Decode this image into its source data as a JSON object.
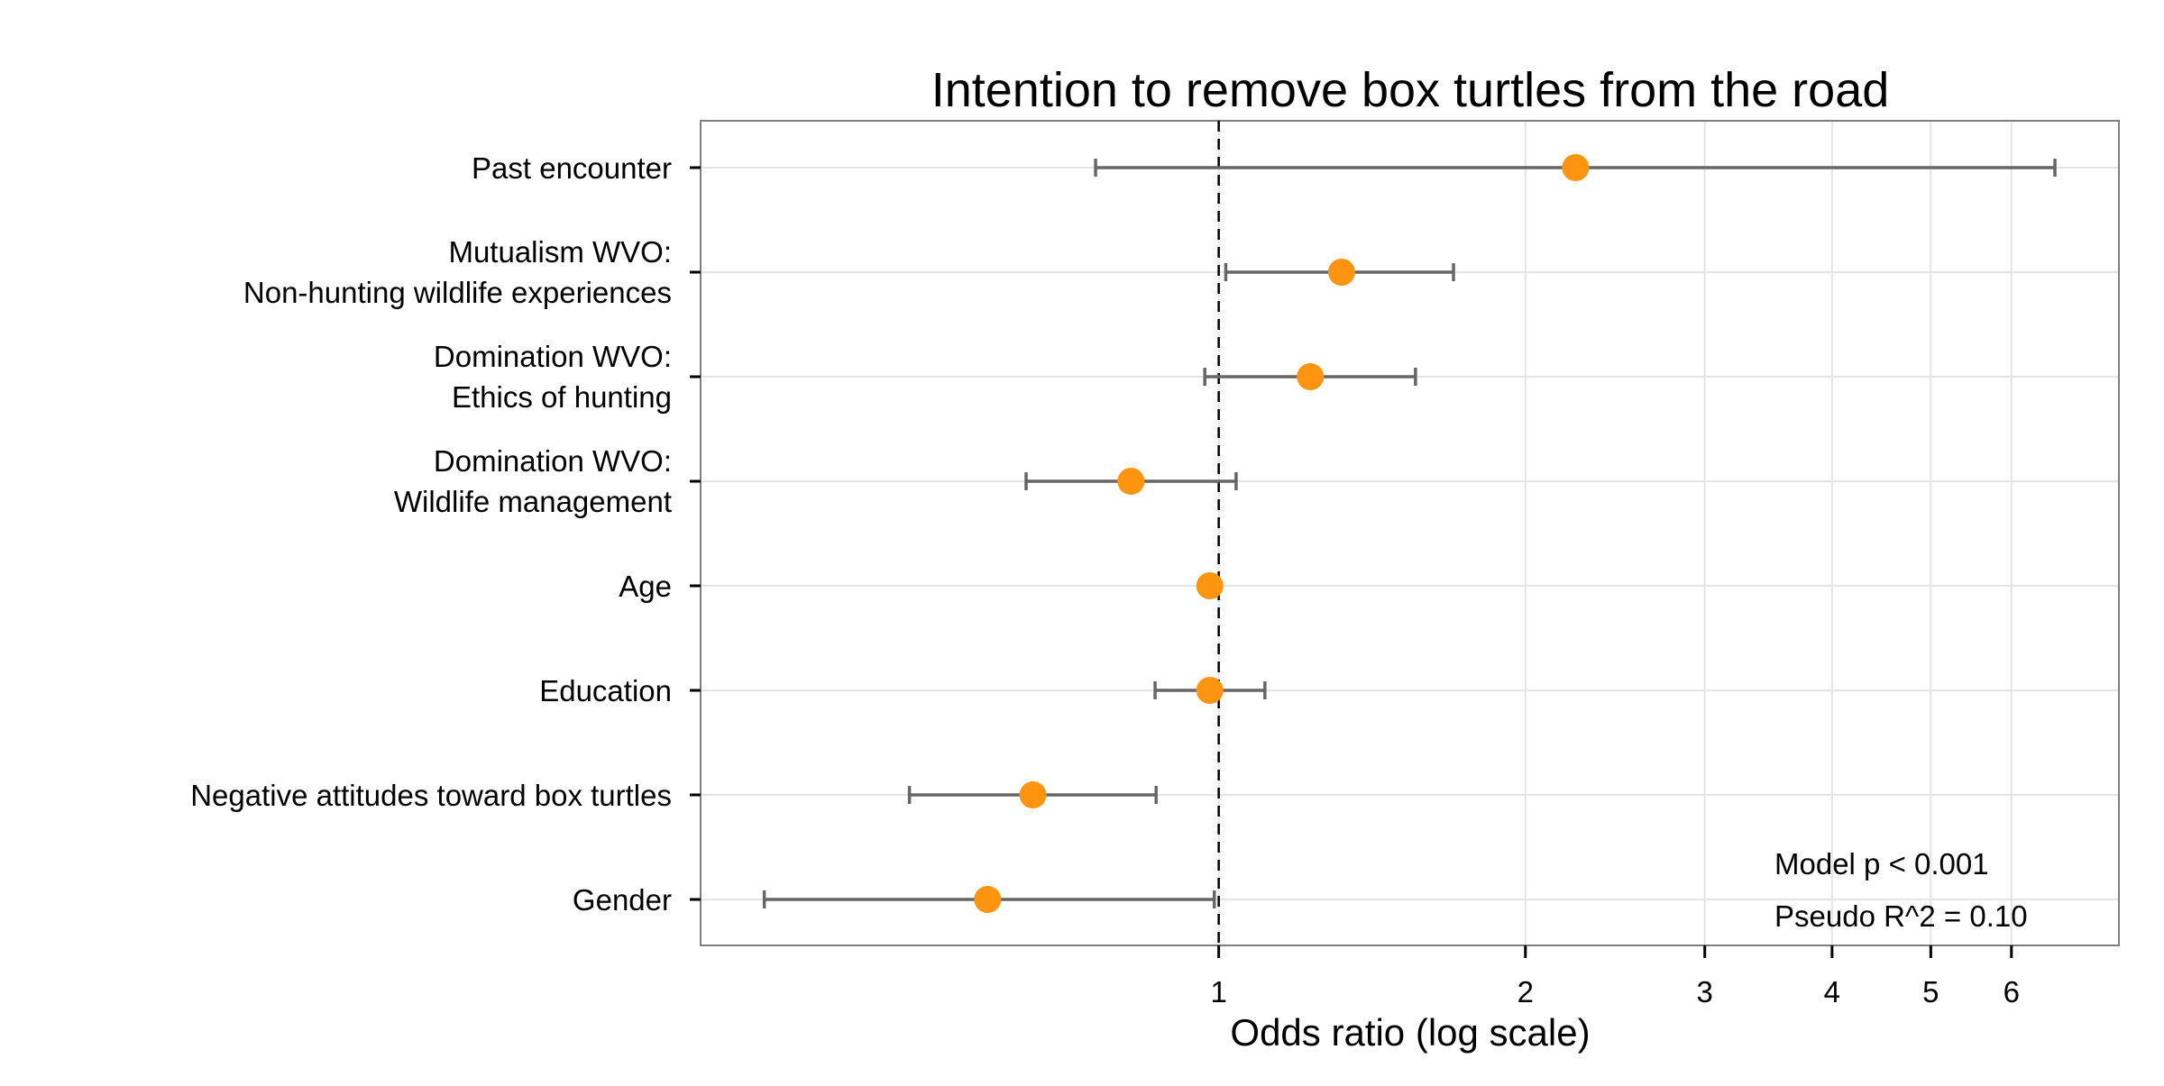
{
  "chart_data": {
    "type": "forest",
    "title": "Intention to remove box turtles from the road",
    "xlabel": "Odds ratio (log scale)",
    "ylabel": "",
    "x_scale": "log",
    "xlim": [
      0.31,
      7.65
    ],
    "x_ticks": [
      1,
      2,
      3,
      4,
      5,
      6
    ],
    "x_tick_labels": [
      "1",
      "2",
      "3",
      "4",
      "5",
      "6"
    ],
    "reference_line": 1,
    "grid": true,
    "colors": {
      "point": "#FF9410",
      "errorbar": "#666666",
      "reference": "#000000",
      "grid": "#E5E5E5"
    },
    "rows": [
      {
        "label": [
          "Past encounter"
        ],
        "or": 2.24,
        "lower": 0.757,
        "upper": 6.62
      },
      {
        "label": [
          "Mutualism WVO:",
          "Non-hunting wildlife experiences"
        ],
        "or": 1.32,
        "lower": 1.016,
        "upper": 1.7
      },
      {
        "label": [
          "Domination WVO:",
          "Ethics of hunting"
        ],
        "or": 1.23,
        "lower": 0.969,
        "upper": 1.56
      },
      {
        "label": [
          "Domination WVO:",
          "Wildlife management"
        ],
        "or": 0.82,
        "lower": 0.647,
        "upper": 1.04
      },
      {
        "label": [
          "Age"
        ],
        "or": 0.98,
        "lower": 0.975,
        "upper": 0.985
      },
      {
        "label": [
          "Education"
        ],
        "or": 0.98,
        "lower": 0.866,
        "upper": 1.11
      },
      {
        "label": [
          "Negative attitudes toward box turtles"
        ],
        "or": 0.657,
        "lower": 0.497,
        "upper": 0.868
      },
      {
        "label": [
          "Gender"
        ],
        "or": 0.593,
        "lower": 0.358,
        "upper": 0.99
      }
    ],
    "annotations": [
      "Model p < 0.001",
      "Pseudo R^2 = 0.10"
    ]
  }
}
